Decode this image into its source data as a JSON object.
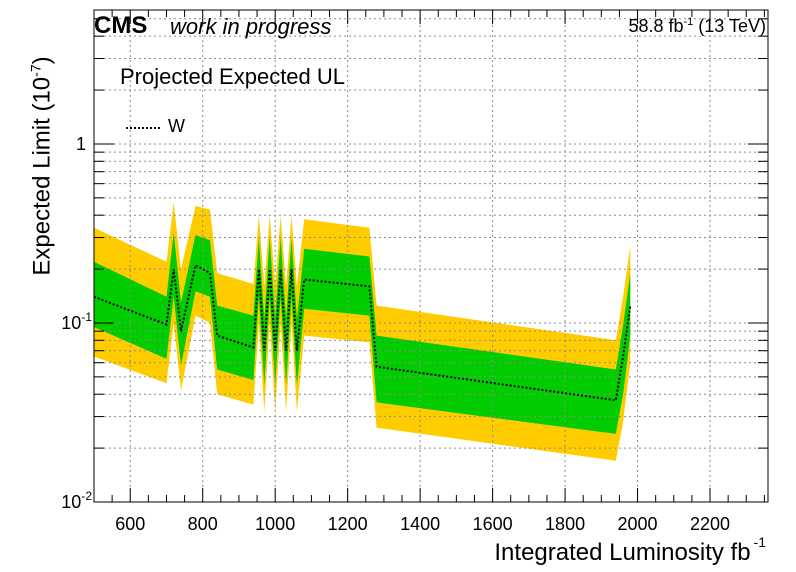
{
  "header": {
    "experiment": "CMS",
    "status": "work in progress",
    "lumi_value": "58.8 fb",
    "lumi_exp": "-1",
    "energy": "(13 TeV)"
  },
  "chart_data": {
    "type": "line",
    "title": "Projected Expected UL",
    "xlabel": "Integrated Luminosity fb",
    "xlabel_exp": "-1",
    "ylabel": "Expected Limit (10",
    "ylabel_exp": "-7",
    "ylabel_close": ")",
    "xlim": [
      500,
      2360
    ],
    "ylim": [
      0.01,
      5.6
    ],
    "yscale": "log",
    "grid": true,
    "legend_position": "top-left",
    "x_ticks": [
      600,
      800,
      1000,
      1200,
      1400,
      1600,
      1800,
      2000,
      2200
    ],
    "y_ticks": [
      {
        "value": 0.01,
        "label": "10",
        "exp": "-2"
      },
      {
        "value": 0.1,
        "label": "10",
        "exp": "-1"
      },
      {
        "value": 1,
        "label": "1",
        "exp": ""
      }
    ],
    "colors": {
      "band_2sigma": "#ffcc00",
      "band_1sigma": "#00cc00",
      "line": "#000000",
      "grid": "#8c8c8c"
    },
    "series": [
      {
        "name": "W",
        "style": "dotted",
        "x": [
          500,
          700,
          720,
          740,
          780,
          820,
          840,
          940,
          955,
          970,
          985,
          1000,
          1015,
          1030,
          1045,
          1060,
          1080,
          1260,
          1280,
          1940,
          1960,
          1980
        ],
        "y": [
          0.14,
          0.098,
          0.2,
          0.09,
          0.21,
          0.19,
          0.085,
          0.073,
          0.2,
          0.07,
          0.2,
          0.07,
          0.2,
          0.07,
          0.2,
          0.07,
          0.175,
          0.16,
          0.057,
          0.037,
          0.065,
          0.125
        ],
        "lo1": [
          0.095,
          0.063,
          0.14,
          0.058,
          0.15,
          0.14,
          0.055,
          0.048,
          0.14,
          0.045,
          0.14,
          0.045,
          0.14,
          0.045,
          0.14,
          0.045,
          0.12,
          0.11,
          0.036,
          0.024,
          0.04,
          0.085
        ],
        "hi1": [
          0.22,
          0.14,
          0.32,
          0.13,
          0.31,
          0.29,
          0.125,
          0.11,
          0.3,
          0.105,
          0.3,
          0.105,
          0.3,
          0.105,
          0.3,
          0.105,
          0.26,
          0.235,
          0.085,
          0.055,
          0.097,
          0.19
        ],
        "lo2": [
          0.065,
          0.046,
          0.1,
          0.042,
          0.11,
          0.1,
          0.04,
          0.035,
          0.1,
          0.032,
          0.1,
          0.032,
          0.1,
          0.032,
          0.1,
          0.032,
          0.085,
          0.078,
          0.026,
          0.017,
          0.028,
          0.06
        ],
        "hi2": [
          0.34,
          0.22,
          0.47,
          0.2,
          0.45,
          0.43,
          0.19,
          0.165,
          0.4,
          0.16,
          0.4,
          0.16,
          0.4,
          0.16,
          0.4,
          0.16,
          0.38,
          0.34,
          0.125,
          0.08,
          0.14,
          0.27
        ]
      }
    ]
  }
}
